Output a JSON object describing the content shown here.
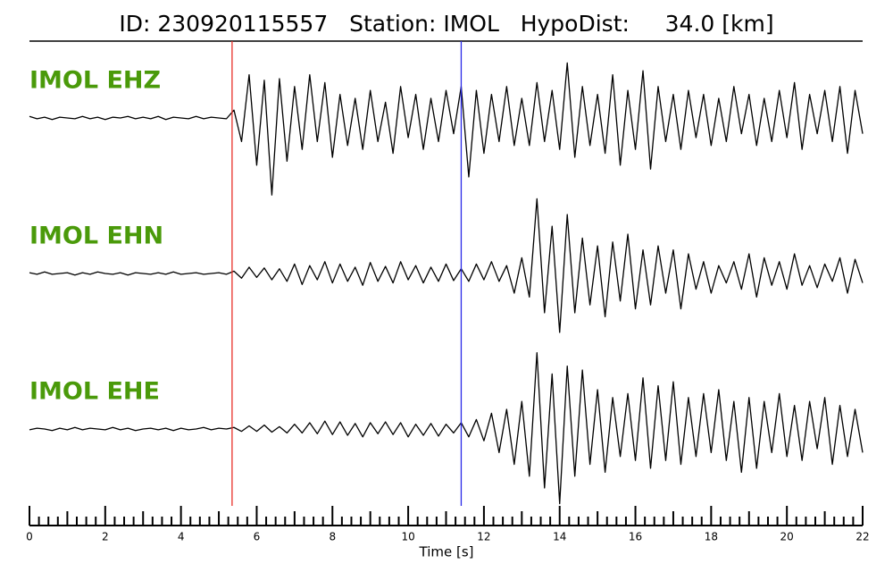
{
  "chart_data": {
    "type": "seismogram",
    "title": "ID: 230920115557   Station: IMOL   HypoDist:     34.0 [km]",
    "xlabel": "Time [s]",
    "xlim": [
      0,
      22
    ],
    "xticks": [
      0,
      2,
      4,
      6,
      8,
      10,
      12,
      14,
      16,
      18,
      20,
      22
    ],
    "minor_xticks": [
      0.25,
      0.5,
      0.75,
      1,
      1.25,
      1.5,
      1.75,
      2.25,
      2.5,
      2.75,
      3,
      3.25,
      3.5,
      3.75,
      4.25,
      4.5,
      4.75,
      5,
      5.25,
      5.5,
      5.75,
      6.25,
      6.5,
      6.75,
      7,
      7.25,
      7.5,
      7.75,
      8.25,
      8.5,
      8.75,
      9,
      9.25,
      9.5,
      9.75,
      10.25,
      10.5,
      10.75,
      11,
      11.25,
      11.5,
      11.75,
      12.25,
      12.5,
      12.75,
      13,
      13.25,
      13.5,
      13.75,
      14.25,
      14.5,
      14.75,
      15,
      15.25,
      15.5,
      15.75,
      16.25,
      16.5,
      16.75,
      17,
      17.25,
      17.5,
      17.75,
      18.25,
      18.5,
      18.75,
      19,
      19.25,
      19.5,
      19.75,
      20.25,
      20.5,
      20.75,
      21,
      21.25,
      21.5,
      21.75
    ],
    "ylim": [
      -100,
      100
    ],
    "label_color": "#4a9a0a",
    "picks": [
      {
        "value": 5.35,
        "color": "#e8302a"
      },
      {
        "value": 11.4,
        "color": "#2a2ae8"
      }
    ],
    "x": [
      0,
      0.2,
      0.4,
      0.6,
      0.8,
      1,
      1.2,
      1.4,
      1.6,
      1.8,
      2,
      2.2,
      2.4,
      2.6,
      2.8,
      3,
      3.2,
      3.4,
      3.6,
      3.8,
      4,
      4.2,
      4.4,
      4.6,
      4.8,
      5,
      5.2,
      5.4,
      5.6,
      5.8,
      6,
      6.2,
      6.4,
      6.6,
      6.8,
      7,
      7.2,
      7.4,
      7.6,
      7.8,
      8,
      8.2,
      8.4,
      8.6,
      8.8,
      9,
      9.2,
      9.4,
      9.6,
      9.8,
      10,
      10.2,
      10.4,
      10.6,
      10.8,
      11,
      11.2,
      11.4,
      11.6,
      11.8,
      12,
      12.2,
      12.4,
      12.6,
      12.8,
      13,
      13.2,
      13.4,
      13.6,
      13.8,
      14,
      14.2,
      14.4,
      14.6,
      14.8,
      15,
      15.2,
      15.4,
      15.6,
      15.8,
      16,
      16.2,
      16.4,
      16.6,
      16.8,
      17,
      17.2,
      17.4,
      17.6,
      17.8,
      18,
      18.2,
      18.4,
      18.6,
      18.8,
      19,
      19.2,
      19.4,
      19.6,
      19.8,
      20,
      20.2,
      20.4,
      20.6,
      20.8,
      21,
      21.2,
      21.4,
      21.6,
      21.8,
      22
    ],
    "series": [
      {
        "name": "IMOL EHZ",
        "color": "#000000",
        "values": [
          2,
          -1,
          1,
          -2,
          1,
          0,
          -1,
          2,
          -1,
          1,
          -2,
          1,
          0,
          2,
          -1,
          1,
          -1,
          2,
          -2,
          1,
          0,
          -1,
          2,
          -1,
          1,
          0,
          -1,
          10,
          -30,
          55,
          -60,
          48,
          -98,
          50,
          -55,
          40,
          -40,
          55,
          -30,
          45,
          -50,
          30,
          -35,
          25,
          -40,
          35,
          -30,
          20,
          -45,
          40,
          -25,
          30,
          -40,
          25,
          -30,
          35,
          -20,
          40,
          -75,
          35,
          -45,
          30,
          -30,
          40,
          -35,
          25,
          -35,
          45,
          -30,
          35,
          -40,
          70,
          -50,
          40,
          -35,
          30,
          -45,
          55,
          -60,
          35,
          -40,
          60,
          -65,
          40,
          -30,
          30,
          -40,
          35,
          -25,
          30,
          -35,
          25,
          -30,
          40,
          -20,
          30,
          -35,
          25,
          -30,
          35,
          -25,
          45,
          -40,
          30,
          -20,
          35,
          -30,
          40,
          -45,
          35,
          -20
        ]
      },
      {
        "name": "IMOL EHN",
        "color": "#000000",
        "values": [
          1,
          -1,
          2,
          -1,
          0,
          1,
          -2,
          1,
          -1,
          2,
          0,
          -1,
          1,
          -2,
          1,
          0,
          -1,
          1,
          -1,
          2,
          -1,
          0,
          1,
          -1,
          0,
          1,
          -1,
          3,
          -6,
          8,
          -5,
          7,
          -8,
          6,
          -10,
          12,
          -14,
          10,
          -8,
          15,
          -12,
          12,
          -10,
          8,
          -15,
          14,
          -10,
          9,
          -12,
          15,
          -8,
          10,
          -12,
          8,
          -10,
          12,
          -9,
          6,
          -10,
          12,
          -8,
          15,
          -10,
          10,
          -25,
          20,
          -30,
          95,
          -50,
          60,
          -75,
          75,
          -50,
          45,
          -40,
          35,
          -55,
          40,
          -35,
          50,
          -45,
          30,
          -40,
          35,
          -25,
          30,
          -45,
          25,
          -20,
          15,
          -25,
          10,
          -12,
          15,
          -20,
          25,
          -30,
          20,
          -15,
          15,
          -20,
          25,
          -15,
          10,
          -18,
          12,
          -10,
          20,
          -25,
          18,
          -12
        ]
      },
      {
        "name": "IMOL EHE",
        "color": "#000000",
        "values": [
          -1,
          1,
          0,
          -2,
          1,
          -1,
          2,
          -1,
          1,
          0,
          -1,
          2,
          -1,
          1,
          -2,
          0,
          1,
          -1,
          1,
          -2,
          1,
          -1,
          0,
          2,
          -1,
          1,
          0,
          2,
          -3,
          4,
          -3,
          5,
          -4,
          3,
          -5,
          6,
          -5,
          8,
          -6,
          10,
          -7,
          9,
          -8,
          7,
          -10,
          8,
          -6,
          9,
          -7,
          8,
          -10,
          6,
          -8,
          7,
          -9,
          6,
          -5,
          8,
          -10,
          12,
          -15,
          20,
          -30,
          25,
          -45,
          35,
          -60,
          97,
          -75,
          70,
          -95,
          80,
          -60,
          75,
          -45,
          50,
          -55,
          40,
          -35,
          45,
          -40,
          65,
          -50,
          55,
          -40,
          60,
          -45,
          40,
          -35,
          45,
          -30,
          50,
          -40,
          35,
          -55,
          40,
          -50,
          35,
          -30,
          45,
          -35,
          30,
          -40,
          35,
          -25,
          40,
          -45,
          30,
          -35,
          25,
          -30
        ]
      }
    ]
  }
}
